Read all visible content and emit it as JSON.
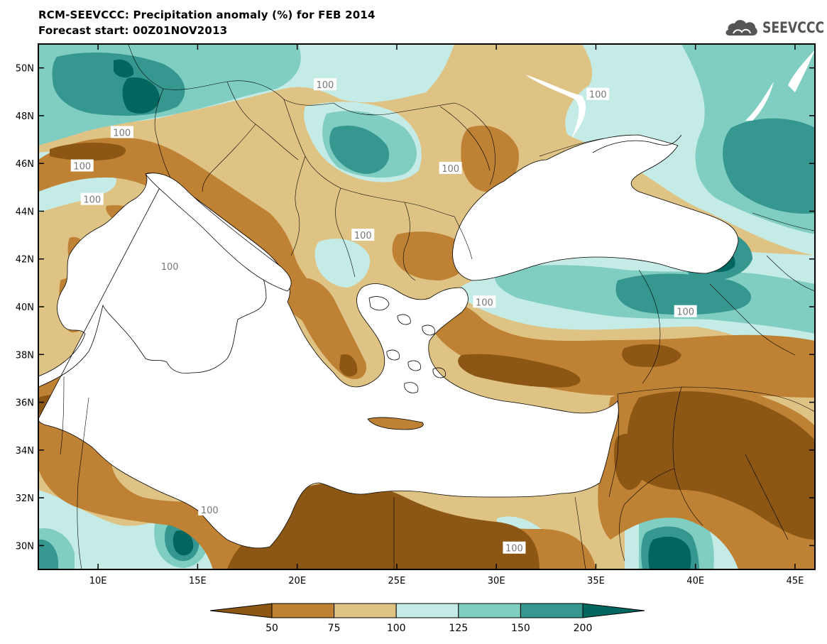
{
  "title": {
    "line1": "RCM-SEEVCCC: Precipitation anomaly (%) for FEB 2014",
    "line2": "Forecast start: 00Z01NOV2013"
  },
  "logo": {
    "text": "SEEVCCC",
    "icon": "cloud-icon"
  },
  "map": {
    "type": "filled-contour-map",
    "lon_range": [
      7,
      46
    ],
    "lat_range": [
      29,
      51
    ],
    "lon_ticks": [
      {
        "value": 10,
        "label": "10E"
      },
      {
        "value": 15,
        "label": "15E"
      },
      {
        "value": 20,
        "label": "20E"
      },
      {
        "value": 25,
        "label": "25E"
      },
      {
        "value": 30,
        "label": "30E"
      },
      {
        "value": 35,
        "label": "35E"
      },
      {
        "value": 40,
        "label": "40E"
      },
      {
        "value": 45,
        "label": "45E"
      }
    ],
    "lat_ticks": [
      {
        "value": 30,
        "label": "30N"
      },
      {
        "value": 32,
        "label": "32N"
      },
      {
        "value": 34,
        "label": "34N"
      },
      {
        "value": 36,
        "label": "36N"
      },
      {
        "value": 38,
        "label": "38N"
      },
      {
        "value": 40,
        "label": "40N"
      },
      {
        "value": 42,
        "label": "42N"
      },
      {
        "value": 44,
        "label": "44N"
      },
      {
        "value": 46,
        "label": "46N"
      },
      {
        "value": 48,
        "label": "48N"
      },
      {
        "value": 50,
        "label": "50N"
      }
    ],
    "contour_labels": [
      {
        "text": "100",
        "lon": 11.2,
        "lat": 47.3
      },
      {
        "text": "100",
        "lon": 21.4,
        "lat": 49.3
      },
      {
        "text": "100",
        "lon": 35.1,
        "lat": 48.9
      },
      {
        "text": "100",
        "lon": 9.2,
        "lat": 45.9
      },
      {
        "text": "100",
        "lon": 9.7,
        "lat": 44.5
      },
      {
        "text": "100",
        "lon": 27.7,
        "lat": 45.8
      },
      {
        "text": "100",
        "lon": 23.3,
        "lat": 43.0
      },
      {
        "text": "100",
        "lon": 13.6,
        "lat": 41.7
      },
      {
        "text": "100",
        "lon": 29.4,
        "lat": 40.2
      },
      {
        "text": "100",
        "lon": 39.5,
        "lat": 39.8
      },
      {
        "text": "100",
        "lon": 15.6,
        "lat": 31.5
      },
      {
        "text": "100",
        "lon": 30.9,
        "lat": 29.9
      }
    ],
    "colors": {
      "below_50": "#8c5614",
      "50_75": "#bf8133",
      "75_100": "#dfc384",
      "100_125": "#c5ebe6",
      "125_150": "#80cdc1",
      "150_200": "#35978f",
      "above_200": "#01665e",
      "land_mask": "#ffffff"
    }
  },
  "colorbar": {
    "labels": [
      "50",
      "75",
      "100",
      "125",
      "150",
      "200"
    ],
    "colors": [
      "#8c5614",
      "#bf8133",
      "#dfc384",
      "#c5ebe6",
      "#80cdc1",
      "#35978f",
      "#01665e"
    ]
  }
}
